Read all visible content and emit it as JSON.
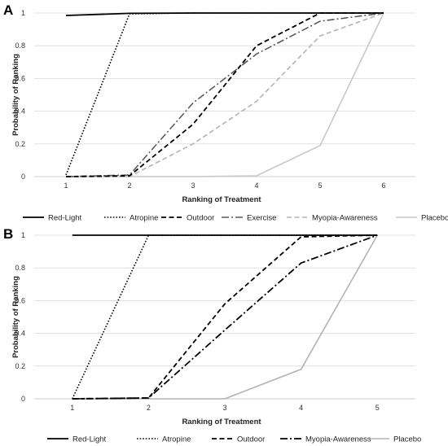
{
  "chart_data": [
    {
      "type": "line",
      "panel_label": "A",
      "x": [
        1,
        2,
        3,
        4,
        5,
        6
      ],
      "xlabel": "Ranking of Treatment",
      "ylabel": "Probability of Ranking",
      "ylim": [
        0,
        1
      ],
      "yticks": [
        0,
        0.2,
        0.4,
        0.6,
        0.8,
        1
      ],
      "yticklabels": [
        "0",
        "0.2",
        "0.4",
        "0.6",
        "0.8",
        "1"
      ],
      "xticklabels": [
        "1",
        "2",
        "3",
        "4",
        "5",
        "6"
      ],
      "grid": true,
      "legend_position": "bottom",
      "series": [
        {
          "name": "Red-Light",
          "values": [
            0.985,
            0.998,
            1.0,
            1.0,
            1.0,
            1.0
          ],
          "color": "#000000",
          "dash": "solid",
          "width": 1.8
        },
        {
          "name": "Atropine",
          "values": [
            0.01,
            0.995,
            1.0,
            1.0,
            1.0,
            1.0
          ],
          "color": "#000000",
          "dash": "dot",
          "width": 1.6
        },
        {
          "name": "Outdoor",
          "values": [
            0.0,
            0.005,
            0.32,
            0.8,
            1.0,
            1.0
          ],
          "color": "#000000",
          "dash": "dash",
          "width": 1.8
        },
        {
          "name": "Exercise",
          "values": [
            0.0,
            0.01,
            0.45,
            0.75,
            0.95,
            1.0
          ],
          "color": "#595959",
          "dash": "dashdot",
          "width": 1.6
        },
        {
          "name": "Myopia-Awareness",
          "values": [
            0.0,
            0.0,
            0.2,
            0.46,
            0.86,
            1.0
          ],
          "color": "#b3b3b3",
          "dash": "dash",
          "width": 1.6
        },
        {
          "name": "Placebo",
          "values": [
            0.0,
            0.0,
            0.0,
            0.005,
            0.19,
            1.0
          ],
          "color": "#c8c8c8",
          "dash": "solid",
          "width": 1.6
        }
      ]
    },
    {
      "type": "line",
      "panel_label": "B",
      "x": [
        1,
        2,
        3,
        4,
        5
      ],
      "xlabel": "Ranking of Treatment",
      "ylabel": "Probability of Ranking",
      "ylim": [
        0,
        1
      ],
      "yticks": [
        0,
        0.2,
        0.4,
        0.6,
        0.8,
        1
      ],
      "yticklabels": [
        "0",
        "0.2",
        "0.4",
        "0.6",
        "0.8",
        "1"
      ],
      "xticklabels": [
        "1",
        "2",
        "3",
        "4",
        "5"
      ],
      "grid": true,
      "legend_position": "bottom",
      "series": [
        {
          "name": "Red-Light",
          "values": [
            1.0,
            1.0,
            1.0,
            1.0,
            1.0
          ],
          "color": "#000000",
          "dash": "solid",
          "width": 1.8
        },
        {
          "name": "Atropine",
          "values": [
            0.0,
            1.0,
            1.0,
            1.0,
            1.0
          ],
          "color": "#000000",
          "dash": "dot",
          "width": 1.6
        },
        {
          "name": "Outdoor",
          "values": [
            0.0,
            0.005,
            0.58,
            0.99,
            1.0
          ],
          "color": "#000000",
          "dash": "dash",
          "width": 1.8
        },
        {
          "name": "Myopia-Awareness",
          "values": [
            0.0,
            0.005,
            0.42,
            0.83,
            1.0
          ],
          "color": "#000000",
          "dash": "dashdot",
          "width": 1.8
        },
        {
          "name": "Placebo",
          "values": [
            0.0,
            0.0,
            0.0,
            0.18,
            1.0
          ],
          "color": "#b3b3b3",
          "dash": "solid",
          "width": 1.6
        }
      ]
    }
  ]
}
